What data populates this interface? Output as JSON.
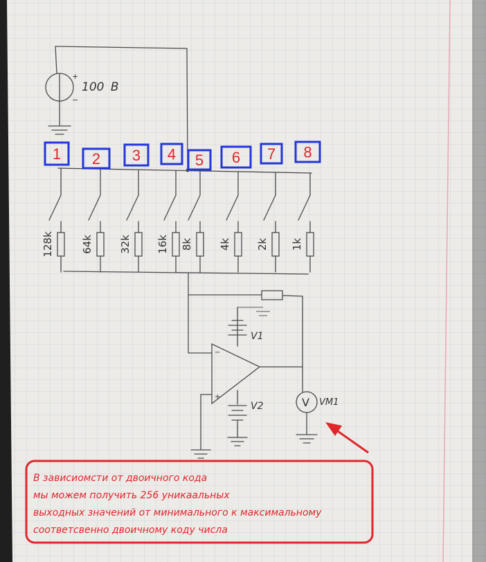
{
  "source": {
    "value": "100",
    "unit": "В"
  },
  "switch_numbers": [
    "1",
    "2",
    "3",
    "4",
    "5",
    "6",
    "7",
    "8"
  ],
  "resistors": [
    "128k",
    "64k",
    "32k",
    "16k",
    "8k",
    "4k",
    "2k",
    "1k"
  ],
  "supply_labels": [
    "V1",
    "V2"
  ],
  "meter_label": "VM1",
  "meter_symbol": "V",
  "note": {
    "lines": [
      "В зависиомсти от двоичного кода",
      "мы можем получить 256 уникаальных",
      "выходных значений от минимального к максимальному",
      "соответсвенно двоичному коду числа"
    ]
  },
  "colors": {
    "annotation_red": "#e0262b",
    "box_blue": "#2336d9",
    "pencil": "#4a4a4a"
  }
}
